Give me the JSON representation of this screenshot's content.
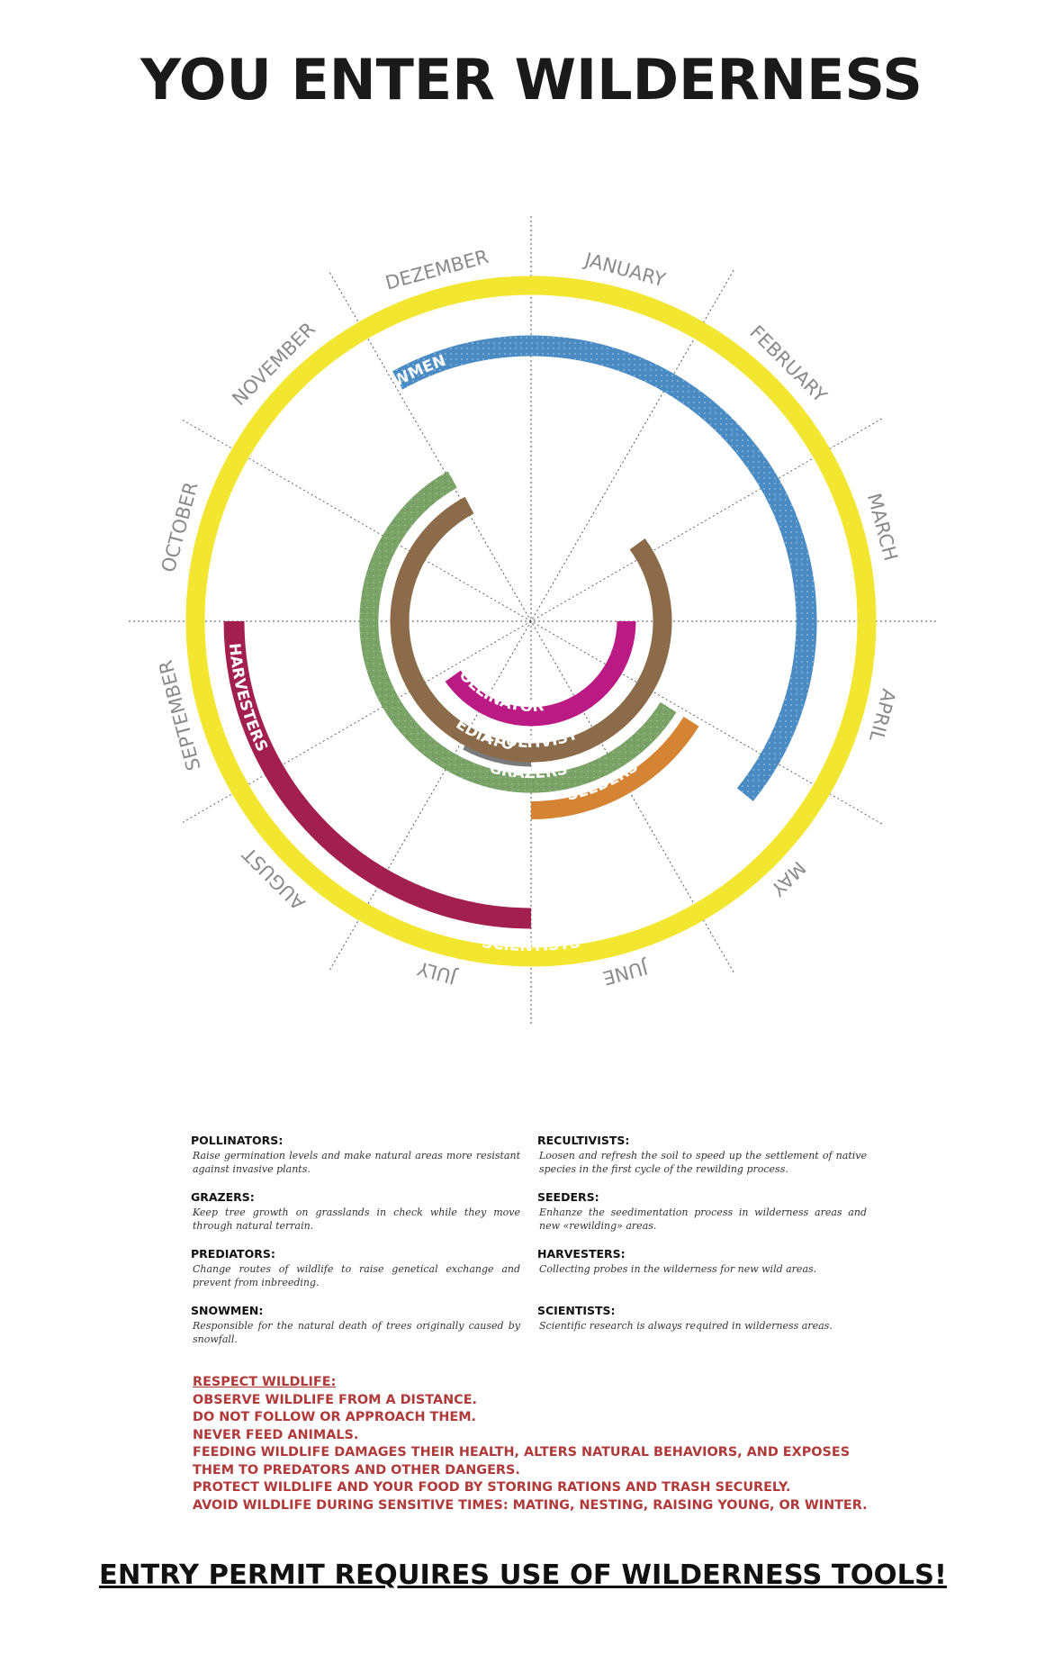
{
  "title": "YOU ENTER WILDERNESS",
  "months": [
    "JANUARY",
    "FEBRUARY",
    "MARCH",
    "APRIL",
    "MAY",
    "JUNE",
    "JULY",
    "AUGUST",
    "SEPTEMBER",
    "OCTOBER",
    "NOVEMBER",
    "DEZEMBER"
  ],
  "rings": [
    {
      "label": "SCIENTISTS",
      "color": "#f3e630"
    },
    {
      "label": "SNOWMEN",
      "color": "#4a8bc4"
    },
    {
      "label": "HARVESTERS",
      "color": "#a3204e"
    },
    {
      "label": "SEEDERS",
      "color": "#d58434"
    },
    {
      "label": "PREDIATORS",
      "color": "#7a7a7a"
    },
    {
      "label": "GRAZERS",
      "color": "#7aa368"
    },
    {
      "label": "RECULTIVISTS",
      "color": "#8b6b4a"
    },
    {
      "label": "POLLINATORS",
      "color": "#bb1a85"
    }
  ],
  "legend": [
    {
      "head": "POLLINATORS:",
      "desc": "Raise germination levels and make natural areas more resistant against invasive plants."
    },
    {
      "head": "GRAZERS:",
      "desc": "Keep tree growth on grasslands in check while they move through natural terrain."
    },
    {
      "head": "PREDIATORS:",
      "desc": "Change routes of wildlife to raise genetical exchange and prevent from inbreeding."
    },
    {
      "head": "SNOWMEN:",
      "desc": "Responsible for the natural death of trees originally caused by snowfall."
    },
    {
      "head": "RECULTIVISTS:",
      "desc": "Loosen and refresh the soil to speed up the settlement of native species in the first cycle of the rewilding process."
    },
    {
      "head": "SEEDERS:",
      "desc": "Enhanze the seedimentation process in wilderness areas and new «rewilding» areas."
    },
    {
      "head": "HARVESTERS:",
      "desc": "Collecting probes in the wilderness for new wild areas."
    },
    {
      "head": "SCIENTISTS:",
      "desc": "Scientific research is always required in wilderness areas."
    }
  ],
  "rules": {
    "heading": "RESPECT WILDLIFE:",
    "lines": [
      "OBSERVE WILDLIFE FROM A DISTANCE.",
      "DO NOT FOLLOW OR APPROACH THEM.",
      "NEVER FEED ANIMALS.",
      "FEEDING WILDLIFE DAMAGES THEIR HEALTH, ALTERS NATURAL BEHAVIORS, AND EXPOSES",
      "THEM TO PREDATORS AND OTHER DANGERS.",
      "PROTECT WILDLIFE AND YOUR FOOD BY STORING RATIONS AND TRASH SECURELY.",
      "AVOID WILDLIFE DURING SENSITIVE TIMES: MATING, NESTING, RAISING YOUNG, OR WINTER."
    ]
  },
  "footer": "ENTRY PERMIT REQUIRES USE OF WILDERNESS TOOLS!"
}
